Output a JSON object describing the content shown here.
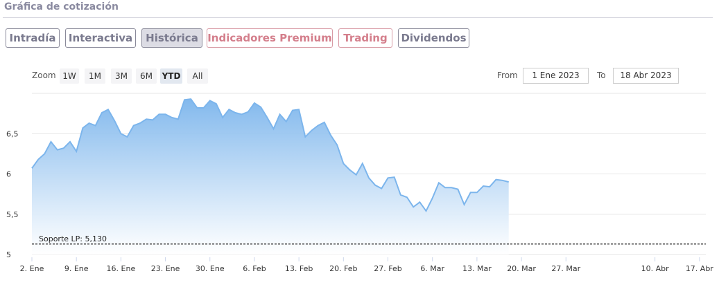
{
  "header": {
    "title": "Gráfica de cotización"
  },
  "tabs": [
    {
      "label": "Intradía",
      "style": "gray"
    },
    {
      "label": "Interactiva",
      "style": "gray"
    },
    {
      "label": "Histórica",
      "style": "active"
    },
    {
      "label": "Indicadores Premium",
      "style": "pink"
    },
    {
      "label": "Trading",
      "style": "pink"
    },
    {
      "label": "Dividendos",
      "style": "gray"
    }
  ],
  "zoom": {
    "label": "Zoom",
    "buttons": [
      "1W",
      "1M",
      "3M",
      "6M",
      "YTD",
      "All"
    ],
    "selected": "YTD"
  },
  "range": {
    "from_label": "From",
    "from_value": "1 Ene 2023",
    "to_label": "To",
    "to_value": "18 Abr 2023"
  },
  "colors": {
    "line": "#7cb5ec",
    "area_top": "#7cb5ec",
    "area_bottom": "#ffffff",
    "grid": "#e6e6e6",
    "support_line": "#000000"
  },
  "chart_data": {
    "type": "area",
    "series": [
      {
        "values": [
          [
            2,
            6.07
          ],
          [
            3,
            6.18
          ],
          [
            4,
            6.25
          ],
          [
            5,
            6.4
          ],
          [
            6,
            6.3
          ],
          [
            7,
            6.32
          ],
          [
            8,
            6.4
          ],
          [
            9,
            6.28
          ],
          [
            10,
            6.57
          ],
          [
            11,
            6.63
          ],
          [
            12,
            6.6
          ],
          [
            13,
            6.76
          ],
          [
            14,
            6.8
          ],
          [
            15,
            6.66
          ],
          [
            16,
            6.5
          ],
          [
            17,
            6.46
          ],
          [
            18,
            6.6
          ],
          [
            19,
            6.63
          ],
          [
            20,
            6.68
          ],
          [
            21,
            6.67
          ],
          [
            22,
            6.74
          ],
          [
            23,
            6.74
          ],
          [
            24,
            6.7
          ],
          [
            25,
            6.68
          ],
          [
            26,
            6.92
          ],
          [
            27,
            6.93
          ],
          [
            28,
            6.82
          ],
          [
            29,
            6.82
          ],
          [
            30,
            6.91
          ],
          [
            31,
            6.87
          ],
          [
            32,
            6.7
          ],
          [
            33,
            6.8
          ],
          [
            34,
            6.76
          ],
          [
            35,
            6.74
          ],
          [
            36,
            6.77
          ],
          [
            37,
            6.88
          ],
          [
            38,
            6.83
          ],
          [
            39,
            6.7
          ],
          [
            40,
            6.56
          ],
          [
            41,
            6.74
          ],
          [
            42,
            6.65
          ],
          [
            43,
            6.79
          ],
          [
            44,
            6.8
          ],
          [
            45,
            6.46
          ],
          [
            46,
            6.54
          ],
          [
            47,
            6.6
          ],
          [
            48,
            6.64
          ],
          [
            49,
            6.48
          ],
          [
            50,
            6.36
          ],
          [
            51,
            6.13
          ],
          [
            52,
            6.05
          ],
          [
            53,
            5.99
          ],
          [
            54,
            6.13
          ],
          [
            55,
            5.95
          ],
          [
            56,
            5.86
          ],
          [
            57,
            5.82
          ],
          [
            58,
            5.95
          ],
          [
            59,
            5.96
          ],
          [
            60,
            5.74
          ],
          [
            61,
            5.71
          ],
          [
            62,
            5.59
          ],
          [
            63,
            5.65
          ],
          [
            64,
            5.54
          ],
          [
            65,
            5.7
          ],
          [
            66,
            5.89
          ],
          [
            67,
            5.83
          ],
          [
            68,
            5.83
          ],
          [
            69,
            5.81
          ],
          [
            70,
            5.62
          ],
          [
            71,
            5.77
          ],
          [
            72,
            5.77
          ],
          [
            73,
            5.85
          ],
          [
            74,
            5.84
          ],
          [
            75,
            5.93
          ],
          [
            76,
            5.92
          ],
          [
            77,
            5.9
          ]
        ]
      }
    ],
    "x_unit": "day of year 2023",
    "xlim": [
      2,
      108
    ],
    "xticks": [
      {
        "x": 2,
        "label": "2. Ene"
      },
      {
        "x": 9,
        "label": "9. Ene"
      },
      {
        "x": 16,
        "label": "16. Ene"
      },
      {
        "x": 23,
        "label": "23. Ene"
      },
      {
        "x": 30,
        "label": "30. Ene"
      },
      {
        "x": 37,
        "label": "6. Feb"
      },
      {
        "x": 44,
        "label": "13. Feb"
      },
      {
        "x": 51,
        "label": "20. Feb"
      },
      {
        "x": 58,
        "label": "27. Feb"
      },
      {
        "x": 65,
        "label": "6. Mar"
      },
      {
        "x": 72,
        "label": "13. Mar"
      },
      {
        "x": 79,
        "label": "20. Mar"
      },
      {
        "x": 86,
        "label": "27. Mar"
      },
      {
        "x": 100,
        "label": "10. Abr"
      },
      {
        "x": 107,
        "label": "17. Abr"
      }
    ],
    "ylim": [
      5,
      7
    ],
    "yticks": [
      {
        "y": 5,
        "label": "5"
      },
      {
        "y": 5.5,
        "label": "5,5"
      },
      {
        "y": 6,
        "label": "6"
      },
      {
        "y": 6.5,
        "label": "6,5"
      }
    ],
    "grid": true,
    "annotations": [
      {
        "type": "hline",
        "y": 5.13,
        "label": "Soporte LP: 5,130",
        "style": "dashed"
      }
    ]
  }
}
